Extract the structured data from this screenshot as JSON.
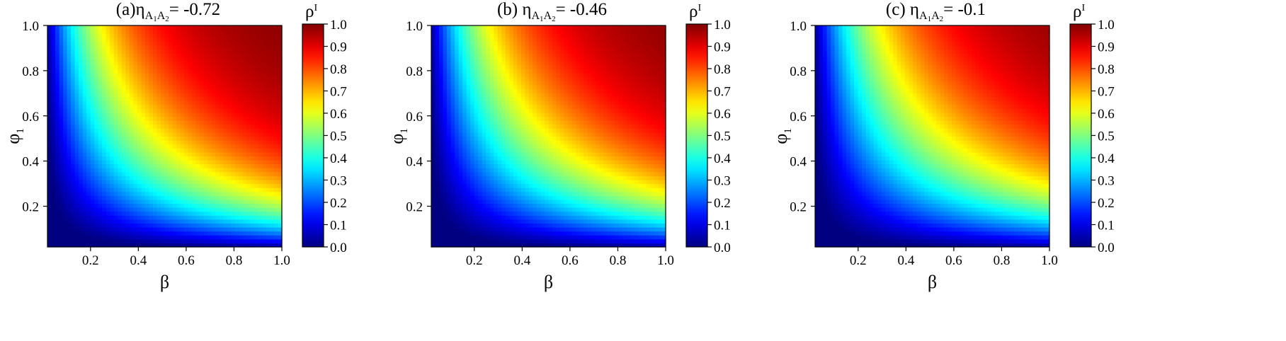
{
  "chart_data": [
    {
      "type": "heatmap",
      "title": {
        "prefix": "(a)",
        "symbol": "η",
        "sub1": "A",
        "sub1b": "1",
        "sub2": "A",
        "sub2b": "2",
        "eq": "= -0.72"
      },
      "eta": -0.72,
      "xlabel": "β",
      "ylabel": {
        "main": "φ",
        "sub": "1"
      },
      "colorbar_label": {
        "main": "ρ",
        "sup": "I"
      },
      "xlim": [
        0.02,
        1.0
      ],
      "ylim": [
        0.02,
        1.0
      ],
      "clim": [
        0.0,
        1.0
      ],
      "colormap": "jet",
      "xticks": [
        "0.2",
        "0.4",
        "0.6",
        "0.8",
        "1.0"
      ],
      "yticks": [
        "0.2",
        "0.4",
        "0.6",
        "0.8",
        "1.0"
      ],
      "cticks": [
        "0.0",
        "0.1",
        "0.2",
        "0.3",
        "0.4",
        "0.5",
        "0.6",
        "0.7",
        "0.8",
        "0.9",
        "1.0"
      ],
      "rho_samples": [
        {
          "beta": 0.2,
          "phi1": 0.2,
          "rho": 0.05
        },
        {
          "beta": 0.4,
          "phi1": 0.4,
          "rho": 0.62
        },
        {
          "beta": 0.6,
          "phi1": 0.6,
          "rho": 0.83
        },
        {
          "beta": 0.8,
          "phi1": 0.8,
          "rho": 0.92
        },
        {
          "beta": 1.0,
          "phi1": 1.0,
          "rho": 0.96
        },
        {
          "beta": 1.0,
          "phi1": 0.2,
          "rho": 0.78
        },
        {
          "beta": 0.2,
          "phi1": 1.0,
          "rho": 0.72
        }
      ]
    },
    {
      "type": "heatmap",
      "title": {
        "prefix": "(b) ",
        "symbol": "η",
        "sub1": "A",
        "sub1b": "1",
        "sub2": "A",
        "sub2b": "2",
        "eq": "= -0.46"
      },
      "eta": -0.46,
      "xlabel": "β",
      "ylabel": {
        "main": "φ",
        "sub": "1"
      },
      "colorbar_label": {
        "main": "ρ",
        "sup": "I"
      },
      "xlim": [
        0.02,
        1.0
      ],
      "ylim": [
        0.02,
        1.0
      ],
      "clim": [
        0.0,
        1.0
      ],
      "colormap": "jet",
      "xticks": [
        "0.2",
        "0.4",
        "0.6",
        "0.8",
        "1.0"
      ],
      "yticks": [
        "0.2",
        "0.4",
        "0.6",
        "0.8",
        "1.0"
      ],
      "cticks": [
        "0.0",
        "0.1",
        "0.2",
        "0.3",
        "0.4",
        "0.5",
        "0.6",
        "0.7",
        "0.8",
        "0.9",
        "1.0"
      ],
      "rho_samples": [
        {
          "beta": 0.2,
          "phi1": 0.2,
          "rho": 0.04
        },
        {
          "beta": 0.4,
          "phi1": 0.4,
          "rho": 0.58
        },
        {
          "beta": 0.6,
          "phi1": 0.6,
          "rho": 0.8
        },
        {
          "beta": 0.8,
          "phi1": 0.8,
          "rho": 0.9
        },
        {
          "beta": 1.0,
          "phi1": 1.0,
          "rho": 0.95
        },
        {
          "beta": 1.0,
          "phi1": 0.2,
          "rho": 0.72
        },
        {
          "beta": 0.2,
          "phi1": 1.0,
          "rho": 0.68
        }
      ]
    },
    {
      "type": "heatmap",
      "title": {
        "prefix": "(c) ",
        "symbol": "η",
        "sub1": "A",
        "sub1b": "1",
        "sub2": "A",
        "sub2b": "2",
        "eq": "= -0.1"
      },
      "eta": -0.1,
      "xlabel": "β",
      "ylabel": {
        "main": "φ",
        "sub": "1"
      },
      "colorbar_label": {
        "main": "ρ",
        "sup": "I"
      },
      "xlim": [
        0.02,
        1.0
      ],
      "ylim": [
        0.02,
        1.0
      ],
      "clim": [
        0.0,
        1.0
      ],
      "colormap": "jet",
      "xticks": [
        "0.2",
        "0.4",
        "0.6",
        "0.8",
        "1.0"
      ],
      "yticks": [
        "0.2",
        "0.4",
        "0.6",
        "0.8",
        "1.0"
      ],
      "cticks": [
        "0.0",
        "0.1",
        "0.2",
        "0.3",
        "0.4",
        "0.5",
        "0.6",
        "0.7",
        "0.8",
        "0.9",
        "1.0"
      ],
      "rho_samples": [
        {
          "beta": 0.2,
          "phi1": 0.2,
          "rho": 0.03
        },
        {
          "beta": 0.4,
          "phi1": 0.4,
          "rho": 0.52
        },
        {
          "beta": 0.6,
          "phi1": 0.6,
          "rho": 0.74
        },
        {
          "beta": 0.8,
          "phi1": 0.8,
          "rho": 0.86
        },
        {
          "beta": 1.0,
          "phi1": 1.0,
          "rho": 0.92
        },
        {
          "beta": 1.0,
          "phi1": 0.2,
          "rho": 0.62
        },
        {
          "beta": 0.2,
          "phi1": 1.0,
          "rho": 0.6
        }
      ]
    }
  ]
}
